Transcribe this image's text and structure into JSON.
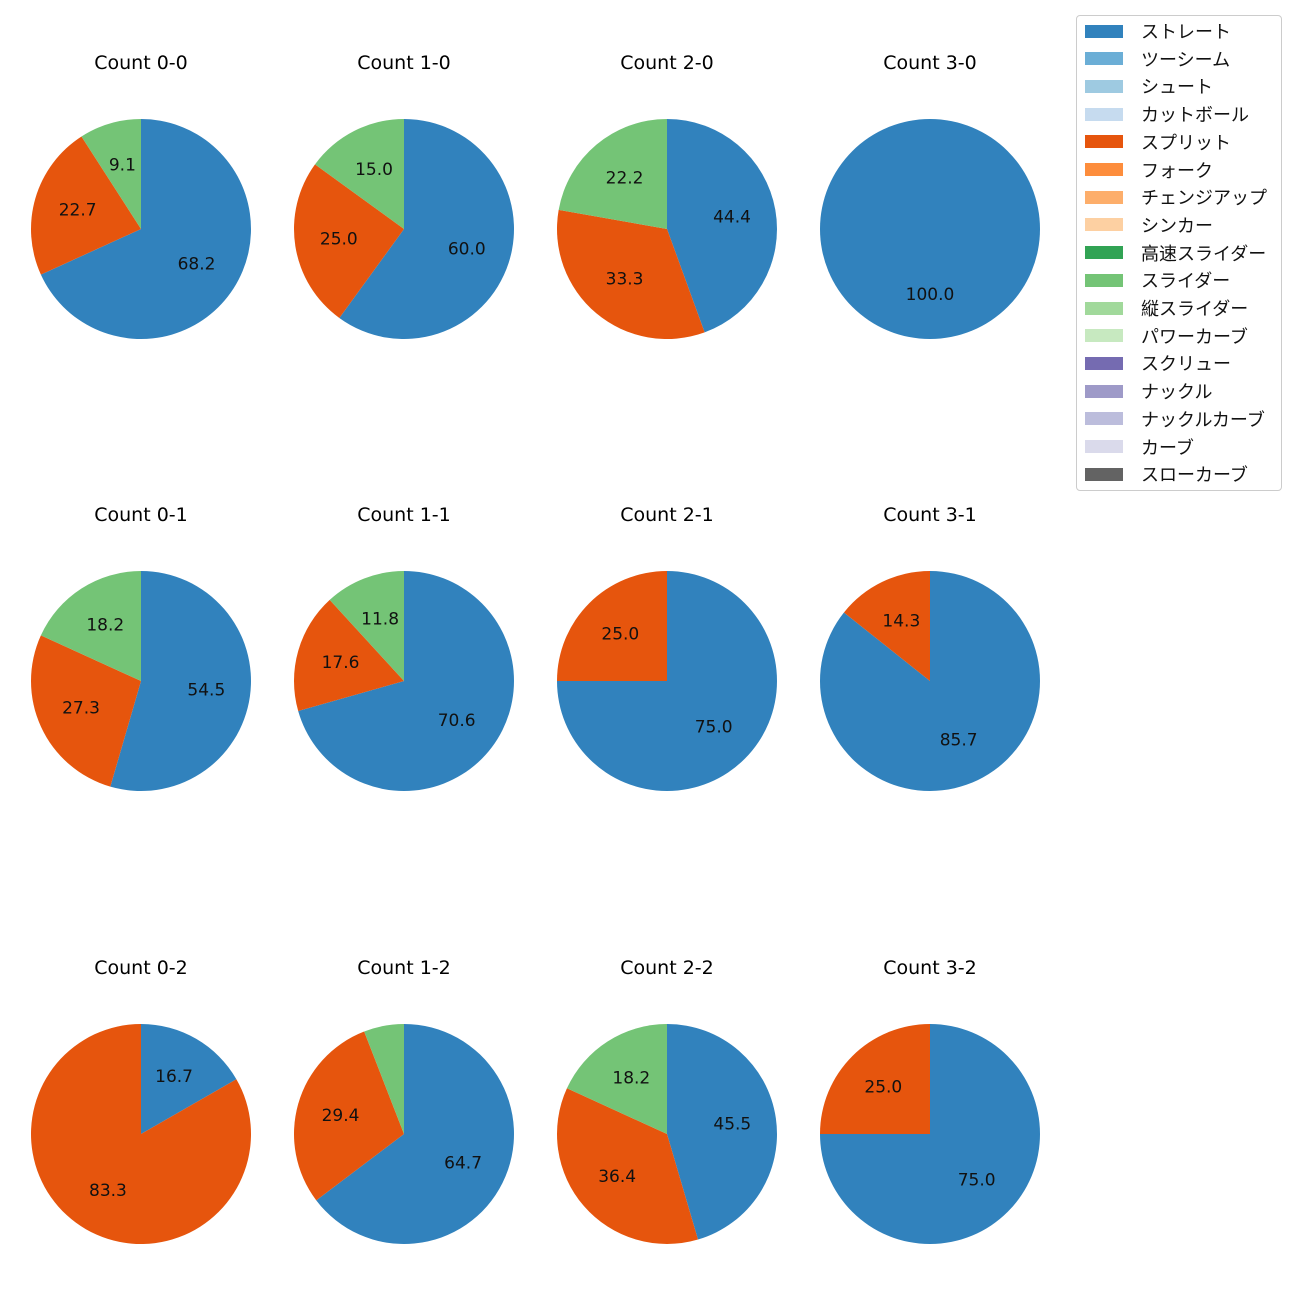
{
  "legend": {
    "items": [
      {
        "label": "ストレート",
        "color": "#3182bd"
      },
      {
        "label": "ツーシーム",
        "color": "#6baed6"
      },
      {
        "label": "シュート",
        "color": "#9ecae1"
      },
      {
        "label": "カットボール",
        "color": "#c6dbef"
      },
      {
        "label": "スプリット",
        "color": "#e6550d"
      },
      {
        "label": "フォーク",
        "color": "#fd8d3c"
      },
      {
        "label": "チェンジアップ",
        "color": "#fdae6b"
      },
      {
        "label": "シンカー",
        "color": "#fdd0a2"
      },
      {
        "label": "高速スライダー",
        "color": "#31a354"
      },
      {
        "label": "スライダー",
        "color": "#74c476"
      },
      {
        "label": "縦スライダー",
        "color": "#a1d99b"
      },
      {
        "label": "パワーカーブ",
        "color": "#c7e9c0"
      },
      {
        "label": "スクリュー",
        "color": "#756bb1"
      },
      {
        "label": "ナックル",
        "color": "#9e9ac8"
      },
      {
        "label": "ナックルカーブ",
        "color": "#bcbddc"
      },
      {
        "label": "カーブ",
        "color": "#dadaeb"
      },
      {
        "label": "スローカーブ",
        "color": "#636363"
      }
    ]
  },
  "chart_data": [
    {
      "type": "pie",
      "title": "Count 0-0",
      "slices": [
        {
          "label": "ストレート",
          "value": 68.2
        },
        {
          "label": "スプリット",
          "value": 22.7
        },
        {
          "label": "スライダー",
          "value": 9.1
        }
      ]
    },
    {
      "type": "pie",
      "title": "Count 1-0",
      "slices": [
        {
          "label": "ストレート",
          "value": 60.0
        },
        {
          "label": "スプリット",
          "value": 25.0
        },
        {
          "label": "スライダー",
          "value": 15.0
        }
      ]
    },
    {
      "type": "pie",
      "title": "Count 2-0",
      "slices": [
        {
          "label": "ストレート",
          "value": 44.4
        },
        {
          "label": "スプリット",
          "value": 33.3
        },
        {
          "label": "スライダー",
          "value": 22.2
        }
      ]
    },
    {
      "type": "pie",
      "title": "Count 3-0",
      "slices": [
        {
          "label": "ストレート",
          "value": 100.0
        }
      ]
    },
    {
      "type": "pie",
      "title": "Count 0-1",
      "slices": [
        {
          "label": "ストレート",
          "value": 54.5
        },
        {
          "label": "スプリット",
          "value": 27.3
        },
        {
          "label": "スライダー",
          "value": 18.2
        }
      ]
    },
    {
      "type": "pie",
      "title": "Count 1-1",
      "slices": [
        {
          "label": "ストレート",
          "value": 70.6
        },
        {
          "label": "スプリット",
          "value": 17.6
        },
        {
          "label": "スライダー",
          "value": 11.8
        }
      ]
    },
    {
      "type": "pie",
      "title": "Count 2-1",
      "slices": [
        {
          "label": "ストレート",
          "value": 75.0
        },
        {
          "label": "スプリット",
          "value": 25.0
        }
      ]
    },
    {
      "type": "pie",
      "title": "Count 3-1",
      "slices": [
        {
          "label": "ストレート",
          "value": 85.7
        },
        {
          "label": "スプリット",
          "value": 14.3
        }
      ]
    },
    {
      "type": "pie",
      "title": "Count 0-2",
      "slices": [
        {
          "label": "ストレート",
          "value": 16.7
        },
        {
          "label": "スプリット",
          "value": 83.3
        }
      ]
    },
    {
      "type": "pie",
      "title": "Count 1-2",
      "slices": [
        {
          "label": "ストレート",
          "value": 64.7
        },
        {
          "label": "スプリット",
          "value": 29.4
        },
        {
          "label": "スライダー",
          "value": 5.9,
          "show_label": false
        }
      ]
    },
    {
      "type": "pie",
      "title": "Count 2-2",
      "slices": [
        {
          "label": "ストレート",
          "value": 45.5
        },
        {
          "label": "スプリット",
          "value": 36.4
        },
        {
          "label": "スライダー",
          "value": 18.2
        }
      ]
    },
    {
      "type": "pie",
      "title": "Count 3-2",
      "slices": [
        {
          "label": "ストレート",
          "value": 75.0
        },
        {
          "label": "スプリット",
          "value": 25.0
        }
      ]
    }
  ]
}
